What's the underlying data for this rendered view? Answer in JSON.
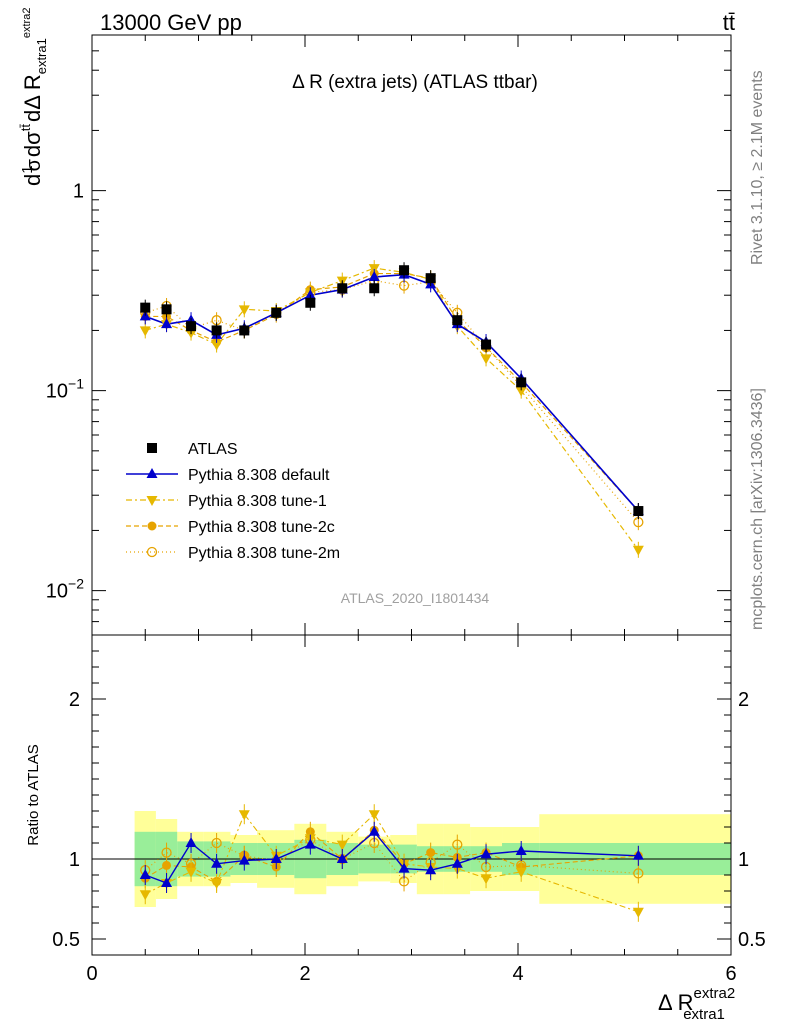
{
  "header": {
    "left": "13000 GeV pp",
    "right": "tt̄"
  },
  "side_labels": {
    "rivet": "Rivet 3.1.10, ≥ 2.1M events",
    "mcplots": "mcplots.cern.ch [arXiv:1306.3436]"
  },
  "chart_data": {
    "type": "line",
    "title": "Δ R (extra jets) (ATLAS ttbar)",
    "watermark": "ATLAS_2020_I1801434",
    "ylabel_top": "1/σ dσ^{tt̄}/dΔR_{extra1}^{extra2}",
    "ylabel_bottom": "Ratio to ATLAS",
    "xlabel": "Δ R extra1 extra2",
    "xlabel_main": "Δ R",
    "xlabel_sup": "extra2",
    "xlabel_sub": "extra1",
    "ylabel_parts": {
      "num_one": "1",
      "den_sigma": "σ",
      "d": "d",
      "d2": "d",
      "sigma": "σ",
      "sup_tt": "tt̄",
      "den": "dΔ R",
      "sub": "extra1",
      "sup": "extra2"
    },
    "xlim": [
      0,
      6
    ],
    "ylim_top": [
      0.006,
      6
    ],
    "ylim_ratio": [
      0.4,
      2.4
    ],
    "log_y_top": true,
    "x_ticks": [
      0,
      2,
      4,
      6
    ],
    "y_ticks_top": [
      {
        "value": 1,
        "label": "1"
      },
      {
        "value": 0.1,
        "label": "10",
        "exp": "−1"
      },
      {
        "value": 0.01,
        "label": "10",
        "exp": "−2"
      }
    ],
    "y_ticks_ratio": [
      0.5,
      1,
      2
    ],
    "x": [
      0.5,
      0.7,
      0.93,
      1.17,
      1.43,
      1.73,
      2.05,
      2.35,
      2.65,
      2.93,
      3.18,
      3.43,
      3.7,
      4.03,
      5.13
    ],
    "series": [
      {
        "name": "ATLAS",
        "color": "#000000",
        "marker": "square",
        "values": [
          0.26,
          0.255,
          0.21,
          0.2,
          0.2,
          0.245,
          0.275,
          0.325,
          0.325,
          0.4,
          0.365,
          0.225,
          0.17,
          0.11,
          0.025
        ]
      },
      {
        "name": "Pythia 8.308 default",
        "color": "#0000cc",
        "marker": "triangle-up",
        "dash": "",
        "values": [
          0.235,
          0.215,
          0.225,
          0.19,
          0.205,
          0.245,
          0.3,
          0.32,
          0.37,
          0.38,
          0.34,
          0.215,
          0.175,
          0.115,
          0.025
        ]
      },
      {
        "name": "Pythia 8.308 tune-1",
        "color": "#e6b800",
        "marker": "triangle-down",
        "dash": "6,3,2,3",
        "values": [
          0.2,
          0.215,
          0.195,
          0.17,
          0.255,
          0.25,
          0.31,
          0.355,
          0.41,
          0.39,
          0.36,
          0.21,
          0.145,
          0.1,
          0.016
        ]
      },
      {
        "name": "Pythia 8.308 tune-2c",
        "color": "#e6a300",
        "marker": "circle",
        "dash": "5,3",
        "values": [
          0.235,
          0.235,
          0.2,
          0.175,
          0.2,
          0.24,
          0.32,
          0.33,
          0.385,
          0.385,
          0.365,
          0.225,
          0.165,
          0.11,
          0.025
        ]
      },
      {
        "name": "Pythia 8.308 tune-2m",
        "color": "#e6a300",
        "marker": "circle-open",
        "dash": "1,3",
        "values": [
          0.245,
          0.265,
          0.205,
          0.225,
          0.2,
          0.245,
          0.31,
          0.32,
          0.355,
          0.335,
          0.35,
          0.245,
          0.165,
          0.105,
          0.022
        ]
      }
    ],
    "ratios": {
      "Pythia 8.308 default": [
        0.9,
        0.85,
        1.1,
        0.97,
        0.99,
        1.0,
        1.09,
        1.0,
        1.17,
        0.94,
        0.93,
        0.97,
        1.03,
        1.05,
        1.02
      ],
      "Pythia 8.308 tune-1": [
        0.78,
        0.85,
        0.92,
        0.85,
        1.28,
        1.02,
        1.13,
        1.09,
        1.28,
        0.97,
        0.95,
        0.94,
        0.88,
        0.92,
        0.67
      ],
      "Pythia 8.308 tune-2c": [
        0.88,
        0.96,
        0.95,
        0.86,
        1.02,
        0.95,
        1.17,
        1.0,
        1.18,
        0.97,
        1.04,
        1.01,
        1.04,
        0.95,
        1.02
      ],
      "Pythia 8.308 tune-2m": [
        0.93,
        1.04,
        0.97,
        1.1,
        1.02,
        0.99,
        1.12,
        1.0,
        1.1,
        0.86,
        0.98,
        1.09,
        0.95,
        0.96,
        0.91
      ]
    },
    "bands": {
      "edges": [
        0.4,
        0.6,
        0.8,
        1.05,
        1.3,
        1.55,
        1.9,
        2.2,
        2.5,
        2.8,
        3.05,
        3.3,
        3.55,
        3.85,
        4.2,
        6.0
      ],
      "green_half": [
        0.17,
        0.17,
        0.11,
        0.11,
        0.1,
        0.1,
        0.12,
        0.1,
        0.09,
        0.09,
        0.08,
        0.08,
        0.08,
        0.1,
        0.1
      ],
      "yellow_half": [
        0.3,
        0.25,
        0.17,
        0.17,
        0.15,
        0.18,
        0.22,
        0.17,
        0.14,
        0.15,
        0.22,
        0.22,
        0.2,
        0.2,
        0.28
      ]
    },
    "legend_position": "lower-left",
    "grid": false
  }
}
